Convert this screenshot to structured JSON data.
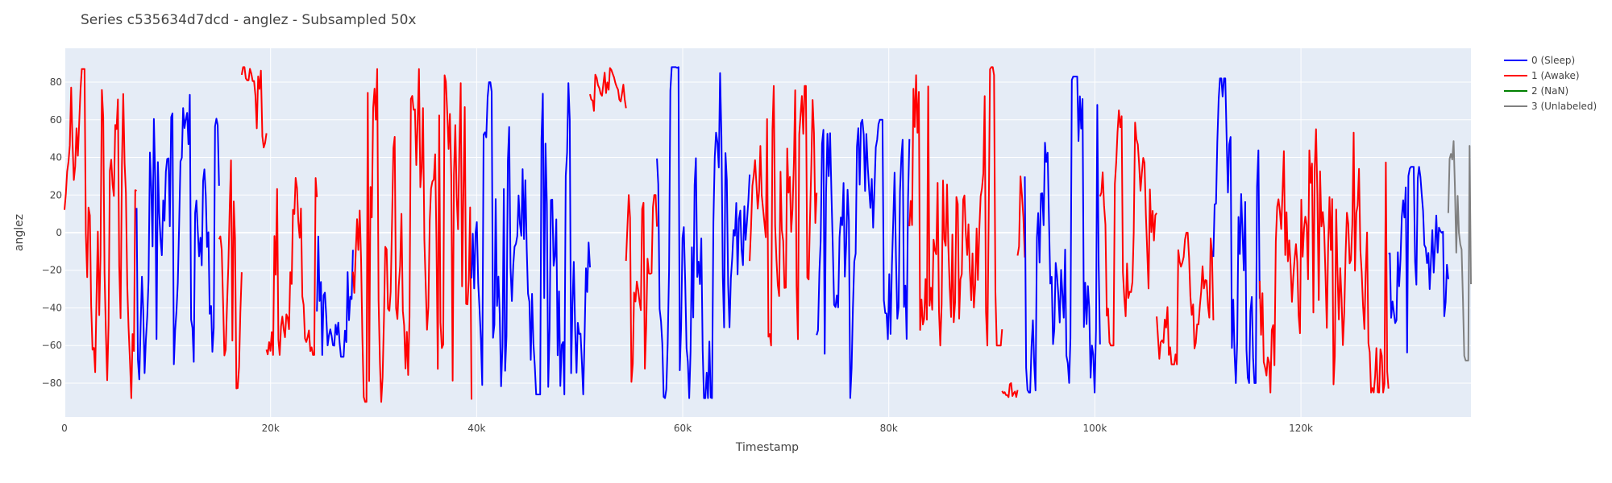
{
  "chart_data": {
    "type": "line",
    "title": "Series c535634d7dcd - anglez - Subsampled 50x",
    "xlabel": "Timestamp",
    "ylabel": "anglez",
    "xlim": [
      0,
      136500
    ],
    "ylim": [
      -98,
      98
    ],
    "x_ticks": [
      0,
      20000,
      40000,
      60000,
      80000,
      100000,
      120000
    ],
    "x_tick_labels": [
      "0",
      "20k",
      "40k",
      "60k",
      "80k",
      "100k",
      "120k"
    ],
    "y_ticks": [
      -80,
      -60,
      -40,
      -20,
      0,
      20,
      40,
      60,
      80
    ],
    "y_tick_labels": [
      "−80",
      "−60",
      "−40",
      "−20",
      "0",
      "20",
      "40",
      "60",
      "80"
    ],
    "grid": true,
    "legend_position": "top-right",
    "legend": [
      {
        "name": "0 (Sleep)",
        "color": "#0000ff"
      },
      {
        "name": "1 (Awake)",
        "color": "#ff0000"
      },
      {
        "name": "2 (NaN)",
        "color": "#008000"
      },
      {
        "name": "3 (Unlabeled)",
        "color": "#808080"
      }
    ],
    "plot_bg": "#e5ecf6",
    "segments": [
      {
        "state": 1,
        "x0": 0,
        "x1": 7000,
        "min": -88,
        "max": 87,
        "seed": 11
      },
      {
        "state": 0,
        "x0": 7000,
        "x1": 15000,
        "min": -78,
        "max": 78,
        "seed": 22
      },
      {
        "state": 1,
        "x0": 15000,
        "x1": 17200,
        "min": -88,
        "max": 45,
        "seed": 33
      },
      {
        "state": 1,
        "x0": 17200,
        "x1": 19600,
        "min": 40,
        "max": 88,
        "seed": 44
      },
      {
        "state": 1,
        "x0": 19600,
        "x1": 24500,
        "min": -65,
        "max": 30,
        "seed": 55
      },
      {
        "state": 0,
        "x0": 24500,
        "x1": 28000,
        "min": -66,
        "max": 5,
        "seed": 66
      },
      {
        "state": 1,
        "x0": 28000,
        "x1": 39500,
        "min": -90,
        "max": 87,
        "seed": 77
      },
      {
        "state": 0,
        "x0": 39500,
        "x1": 51000,
        "min": -86,
        "max": 80,
        "seed": 88
      },
      {
        "state": 1,
        "x0": 51000,
        "x1": 54500,
        "min": 60,
        "max": 88,
        "seed": 99
      },
      {
        "state": 1,
        "x0": 54500,
        "x1": 57500,
        "min": -87,
        "max": 20,
        "seed": 111
      },
      {
        "state": 0,
        "x0": 57500,
        "x1": 66500,
        "min": -88,
        "max": 88,
        "seed": 122
      },
      {
        "state": 1,
        "x0": 66500,
        "x1": 73000,
        "min": -60,
        "max": 78,
        "seed": 133
      },
      {
        "state": 0,
        "x0": 73000,
        "x1": 82000,
        "min": -88,
        "max": 60,
        "seed": 144
      },
      {
        "state": 1,
        "x0": 82000,
        "x1": 91000,
        "min": -60,
        "max": 88,
        "seed": 155
      },
      {
        "state": 1,
        "x0": 91000,
        "x1": 92500,
        "min": -88,
        "max": -80,
        "seed": 166
      },
      {
        "state": 1,
        "x0": 92500,
        "x1": 93200,
        "min": -60,
        "max": 30,
        "seed": 177
      },
      {
        "state": 0,
        "x0": 93200,
        "x1": 100500,
        "min": -85,
        "max": 83,
        "seed": 188
      },
      {
        "state": 1,
        "x0": 100500,
        "x1": 106000,
        "min": -60,
        "max": 65,
        "seed": 199
      },
      {
        "state": 1,
        "x0": 106000,
        "x1": 111500,
        "min": -70,
        "max": 0,
        "seed": 211
      },
      {
        "state": 0,
        "x0": 111500,
        "x1": 116000,
        "min": -80,
        "max": 82,
        "seed": 222
      },
      {
        "state": 1,
        "x0": 116000,
        "x1": 128500,
        "min": -85,
        "max": 55,
        "seed": 233
      },
      {
        "state": 0,
        "x0": 128500,
        "x1": 134300,
        "min": -65,
        "max": 35,
        "seed": 244
      },
      {
        "state": 3,
        "x0": 134300,
        "x1": 136500,
        "min": -68,
        "max": 70,
        "seed": 255
      }
    ]
  }
}
